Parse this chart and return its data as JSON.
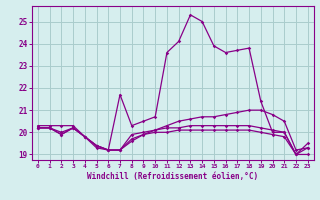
{
  "x": [
    0,
    1,
    2,
    3,
    4,
    5,
    6,
    7,
    8,
    9,
    10,
    11,
    12,
    13,
    14,
    15,
    16,
    17,
    18,
    19,
    20,
    21,
    22,
    23
  ],
  "line1": [
    20.3,
    20.3,
    20.3,
    20.3,
    19.8,
    19.4,
    19.2,
    21.7,
    20.3,
    20.5,
    20.7,
    23.6,
    24.1,
    25.3,
    25.0,
    23.9,
    23.6,
    23.7,
    23.8,
    21.4,
    20.0,
    20.0,
    19.0,
    19.5
  ],
  "line2": [
    20.2,
    20.2,
    20.0,
    20.2,
    19.8,
    19.3,
    19.2,
    19.2,
    19.6,
    19.9,
    20.1,
    20.3,
    20.5,
    20.6,
    20.7,
    20.7,
    20.8,
    20.9,
    21.0,
    21.0,
    20.8,
    20.5,
    19.2,
    19.3
  ],
  "line3": [
    20.2,
    20.2,
    19.9,
    20.2,
    19.8,
    19.4,
    19.2,
    19.2,
    19.7,
    19.9,
    20.0,
    20.0,
    20.1,
    20.1,
    20.1,
    20.1,
    20.1,
    20.1,
    20.1,
    20.0,
    19.9,
    19.8,
    19.0,
    19.0
  ],
  "line4": [
    20.2,
    20.2,
    19.9,
    20.2,
    19.8,
    19.4,
    19.2,
    19.2,
    19.9,
    20.0,
    20.1,
    20.2,
    20.2,
    20.3,
    20.3,
    20.3,
    20.3,
    20.3,
    20.3,
    20.2,
    20.1,
    20.0,
    19.0,
    19.3
  ],
  "bg_color": "#d6eeee",
  "grid_color": "#aacccc",
  "line_color": "#880088",
  "ylim_min": 18.75,
  "ylim_max": 25.7,
  "yticks": [
    19,
    20,
    21,
    22,
    23,
    24,
    25
  ],
  "xticks": [
    0,
    1,
    2,
    3,
    4,
    5,
    6,
    7,
    8,
    9,
    10,
    11,
    12,
    13,
    14,
    15,
    16,
    17,
    18,
    19,
    20,
    21,
    22,
    23
  ],
  "xlabel": "Windchill (Refroidissement éolien,°C)"
}
